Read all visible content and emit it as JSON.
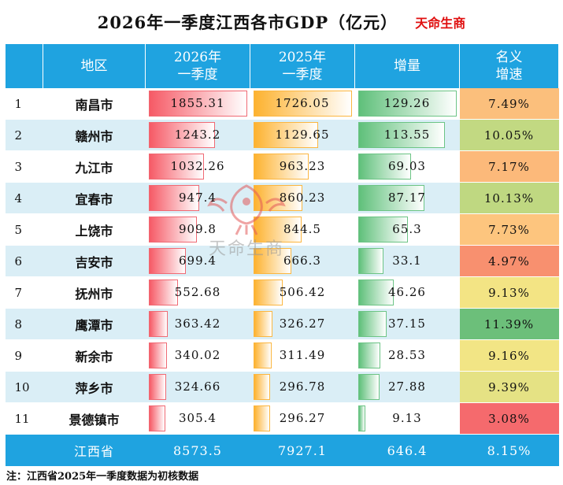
{
  "title": "2026年一季度江西各市GDP（亿元）",
  "brand": "天命生商",
  "headers": {
    "region": "地区",
    "gdp2026": "2026年一季度",
    "gdp2025": "2025年一季度",
    "increase": "增量",
    "growth": "名义增速"
  },
  "colors": {
    "header_bg": "#1fa3e0",
    "bar_2026": "#f65a66",
    "bar_2025": "#fdb22f",
    "bar_increase": "#5fc07a"
  },
  "rows": [
    {
      "rank": "1",
      "region": "南昌市",
      "gdp2026": "1855.31",
      "gdp2025": "1726.05",
      "increase": "129.26",
      "growth": "7.49%",
      "growth_color": "#fbbf7c",
      "v26": 1855.31,
      "v25": 1726.05,
      "vinc": 129.26
    },
    {
      "rank": "2",
      "region": "赣州市",
      "gdp2026": "1243.2",
      "gdp2025": "1129.65",
      "increase": "113.55",
      "growth": "10.05%",
      "growth_color": "#c2d982",
      "v26": 1243.2,
      "v25": 1129.65,
      "vinc": 113.55
    },
    {
      "rank": "3",
      "region": "九江市",
      "gdp2026": "1032.26",
      "gdp2025": "963.23",
      "increase": "69.03",
      "growth": "7.17%",
      "growth_color": "#fcb97a",
      "v26": 1032.26,
      "v25": 963.23,
      "vinc": 69.03
    },
    {
      "rank": "4",
      "region": "宜春市",
      "gdp2026": "947.4",
      "gdp2025": "860.23",
      "increase": "87.17",
      "growth": "10.13%",
      "growth_color": "#bfd881",
      "v26": 947.4,
      "v25": 860.23,
      "vinc": 87.17
    },
    {
      "rank": "5",
      "region": "上饶市",
      "gdp2026": "909.8",
      "gdp2025": "844.5",
      "increase": "65.3",
      "growth": "7.73%",
      "growth_color": "#fdc57e",
      "v26": 909.8,
      "v25": 844.5,
      "vinc": 65.3
    },
    {
      "rank": "6",
      "region": "吉安市",
      "gdp2026": "699.4",
      "gdp2025": "666.3",
      "increase": "33.1",
      "growth": "4.97%",
      "growth_color": "#f8906f",
      "v26": 699.4,
      "v25": 666.3,
      "vinc": 33.1
    },
    {
      "rank": "7",
      "region": "抚州市",
      "gdp2026": "552.68",
      "gdp2025": "506.42",
      "increase": "46.26",
      "growth": "9.13%",
      "growth_color": "#f3e484",
      "v26": 552.68,
      "v25": 506.42,
      "vinc": 46.26
    },
    {
      "rank": "8",
      "region": "鹰潭市",
      "gdp2026": "363.42",
      "gdp2025": "326.27",
      "increase": "37.15",
      "growth": "11.39%",
      "growth_color": "#6cbf7a",
      "v26": 363.42,
      "v25": 326.27,
      "vinc": 37.15
    },
    {
      "rank": "9",
      "region": "新余市",
      "gdp2026": "340.02",
      "gdp2025": "311.49",
      "increase": "28.53",
      "growth": "9.16%",
      "growth_color": "#f2e585",
      "v26": 340.02,
      "v25": 311.49,
      "vinc": 28.53
    },
    {
      "rank": "10",
      "region": "萍乡市",
      "gdp2026": "324.66",
      "gdp2025": "296.78",
      "increase": "27.88",
      "growth": "9.39%",
      "growth_color": "#e5e284",
      "v26": 324.66,
      "v25": 296.78,
      "vinc": 27.88
    },
    {
      "rank": "11",
      "region": "景德镇市",
      "gdp2026": "305.4",
      "gdp2025": "296.27",
      "increase": "9.13",
      "growth": "3.08%",
      "growth_color": "#f56a6d",
      "v26": 305.4,
      "v25": 296.27,
      "vinc": 9.13
    }
  ],
  "total": {
    "region": "江西省",
    "gdp2026": "8573.5",
    "gdp2025": "7927.1",
    "increase": "646.4",
    "growth": "8.15%"
  },
  "note": "注：江西省2025年一季度数据为初核数据",
  "watermark_text": "天命生商"
}
